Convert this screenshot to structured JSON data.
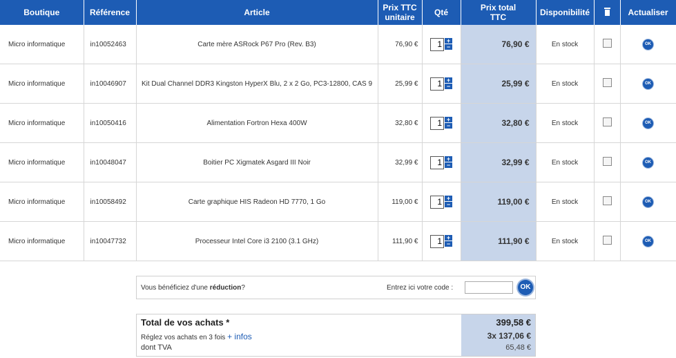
{
  "headers": {
    "boutique": "Boutique",
    "reference": "Référence",
    "article": "Article",
    "prix_unitaire_l1": "Prix TTC",
    "prix_unitaire_l2": "unitaire",
    "qte": "Qté",
    "prix_total_l1": "Prix total",
    "prix_total_l2": "TTC",
    "disponibilite": "Disponibilité",
    "delete_icon": "trash-icon",
    "actualiser": "Actualiser"
  },
  "rows": [
    {
      "boutique": "Micro informatique",
      "reference": "in10052463",
      "article": "Carte mère ASRock P67 Pro (Rev. B3)",
      "prix_unitaire": "76,90 €",
      "qte": "1",
      "prix_total": "76,90 €",
      "disponibilite": "En stock",
      "ok": "OK"
    },
    {
      "boutique": "Micro informatique",
      "reference": "in10046907",
      "article": "Kit Dual Channel DDR3 Kingston HyperX Blu, 2 x 2 Go, PC3-12800, CAS 9",
      "prix_unitaire": "25,99 €",
      "qte": "1",
      "prix_total": "25,99 €",
      "disponibilite": "En stock",
      "ok": "OK"
    },
    {
      "boutique": "Micro informatique",
      "reference": "in10050416",
      "article": "Alimentation Fortron Hexa 400W",
      "prix_unitaire": "32,80 €",
      "qte": "1",
      "prix_total": "32,80 €",
      "disponibilite": "En stock",
      "ok": "OK"
    },
    {
      "boutique": "Micro informatique",
      "reference": "in10048047",
      "article": "Boitier PC Xigmatek Asgard III Noir",
      "prix_unitaire": "32,99 €",
      "qte": "1",
      "prix_total": "32,99 €",
      "disponibilite": "En stock",
      "ok": "OK"
    },
    {
      "boutique": "Micro informatique",
      "reference": "in10058492",
      "article": "Carte graphique HIS Radeon HD 7770, 1 Go",
      "prix_unitaire": "119,00 €",
      "qte": "1",
      "prix_total": "119,00 €",
      "disponibilite": "En stock",
      "ok": "OK"
    },
    {
      "boutique": "Micro informatique",
      "reference": "in10047732",
      "article": "Processeur Intel Core i3 2100 (3.1 GHz)",
      "prix_unitaire": "111,90 €",
      "qte": "1",
      "prix_total": "111,90 €",
      "disponibilite": "En stock",
      "ok": "OK"
    }
  ],
  "stepper": {
    "plus": "+",
    "minus": "−"
  },
  "reduction": {
    "text_before": "Vous bénéficiez d'une ",
    "text_bold": "réduction",
    "text_after": "?",
    "code_label": "Entrez ici votre code :",
    "code_value": "",
    "ok": "OK"
  },
  "totals": {
    "total_label": "Total de vos achats *",
    "total_value": "399,58 €",
    "installment_label": "Réglez vos achats en 3 fois ",
    "installment_link": "+ infos",
    "installment_value": "3x  137,06 €",
    "tva_label": "dont TVA",
    "tva_value": "65,48 €"
  },
  "colors": {
    "header_bg": "#1d5cb4",
    "total_col_bg": "#c7d5ea"
  }
}
